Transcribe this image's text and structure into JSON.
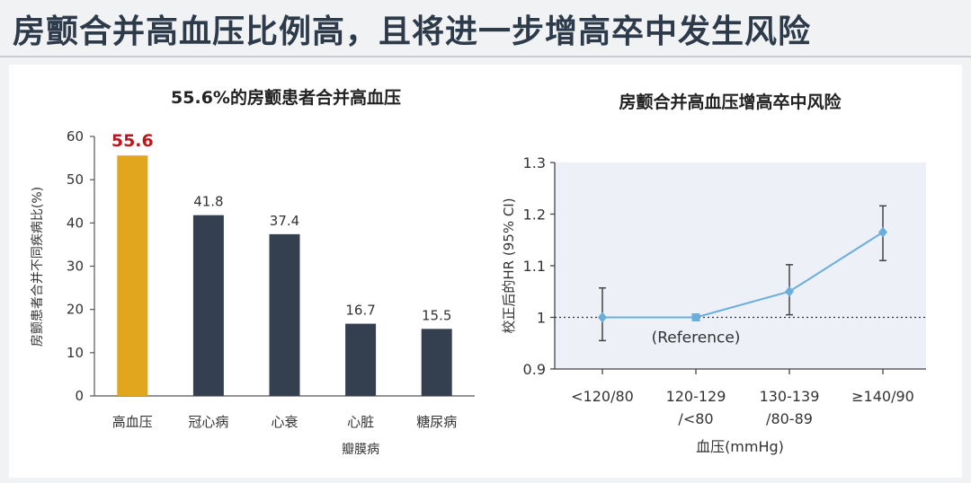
{
  "header": {
    "title": "房颤合并高血压比例高，且将进一步增高卒中发生风险"
  },
  "chart_data": [
    {
      "type": "bar",
      "title": "55.6%的房颤患者合并高血压",
      "xlabel": "",
      "ylabel": "房颤患者合并不同疾病比(%)",
      "ylim": [
        0,
        60
      ],
      "yticks": [
        0,
        10,
        20,
        30,
        40,
        50,
        60
      ],
      "categories": [
        "高血压",
        "冠心病",
        "心衰",
        "心脏",
        "糖尿病"
      ],
      "category_sublabels": [
        "",
        "",
        "",
        "瓣膜病",
        ""
      ],
      "values": [
        55.6,
        41.8,
        37.4,
        16.7,
        15.5
      ],
      "value_labels": [
        "55.6",
        "41.8",
        "37.4",
        "16.7",
        "15.5"
      ],
      "bar_colors": [
        "#e2a51e",
        "#34404f",
        "#34404f",
        "#34404f",
        "#34404f"
      ],
      "highlight_label_color": "#c0161b",
      "grid": false
    },
    {
      "type": "line",
      "title": "房颤合并高血压增高卒中风险",
      "xlabel": "血压(mmHg)",
      "ylabel": "校正后的HR (95% CI)",
      "ylim": [
        0.9,
        1.3
      ],
      "yticks": [
        "0.9",
        "1",
        "1.1",
        "1.2",
        "1.3"
      ],
      "categories": [
        "<120/80",
        "120-129\n/<80",
        "130-139\n/80-89",
        "≥140/90"
      ],
      "values": [
        1.0,
        1.0,
        1.05,
        1.165
      ],
      "ci_low": [
        0.955,
        null,
        1.005,
        1.11
      ],
      "ci_high": [
        1.057,
        null,
        1.102,
        1.216
      ],
      "reference_line": 1.0,
      "annotation": "(Reference)",
      "line_color": "#6aaedb",
      "plot_background": "#eef0f8",
      "grid": false
    }
  ]
}
